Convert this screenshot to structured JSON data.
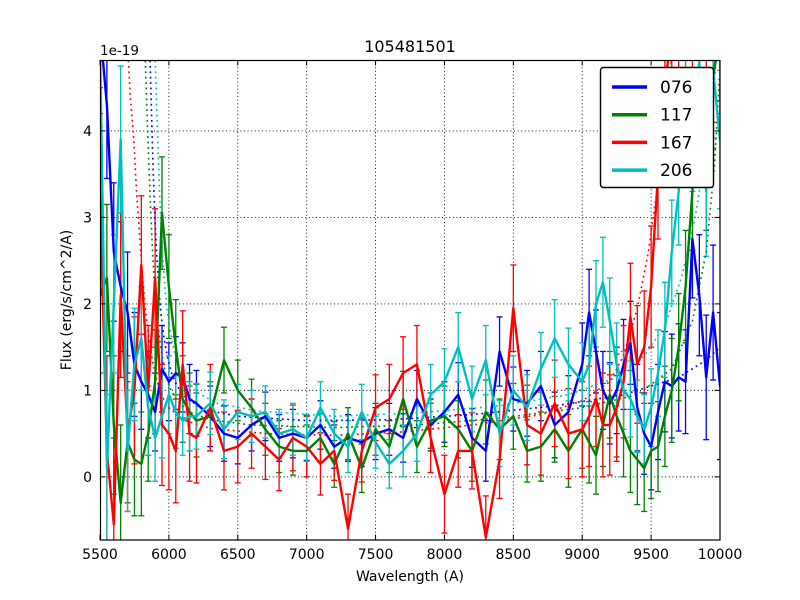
{
  "title": "105481501",
  "offset_label": "1e-19",
  "axes": {
    "xlabel": "Wavelength (A)",
    "ylabel": "Flux (erg/s/cm^2/A)"
  },
  "legend": {
    "position": "upper right",
    "entries": [
      {
        "label": "076",
        "color": "#0000ff"
      },
      {
        "label": "117",
        "color": "#008000"
      },
      {
        "label": "167",
        "color": "#ff0000"
      },
      {
        "label": "206",
        "color": "#00bfbf"
      }
    ]
  },
  "chart_data": {
    "type": "line",
    "title": "105481501",
    "xlabel": "Wavelength (A)",
    "ylabel": "Flux (erg/s/cm^2/A)",
    "y_offset_factor": "1e-19",
    "grid": true,
    "xlim": [
      5500,
      10000
    ],
    "ylim": [
      -0.73,
      4.82
    ],
    "x_ticks": [
      5500,
      6000,
      6500,
      7000,
      7500,
      8000,
      8500,
      9000,
      9500,
      10000
    ],
    "y_ticks": [
      0,
      1,
      2,
      3,
      4
    ],
    "x": [
      5500,
      5550,
      5600,
      5650,
      5700,
      5750,
      5800,
      5850,
      5900,
      5950,
      6000,
      6050,
      6100,
      6150,
      6200,
      6300,
      6400,
      6500,
      6600,
      6700,
      6800,
      6900,
      7000,
      7100,
      7200,
      7300,
      7400,
      7500,
      7600,
      7700,
      7800,
      7900,
      8000,
      8100,
      8200,
      8300,
      8400,
      8500,
      8600,
      8700,
      8800,
      8900,
      9000,
      9050,
      9100,
      9150,
      9200,
      9250,
      9300,
      9350,
      9400,
      9450,
      9500,
      9550,
      9600,
      9650,
      9700,
      9750,
      9800,
      9850,
      9900,
      9950,
      10000
    ],
    "series": [
      {
        "name": "076",
        "color": "#0000ff",
        "values": [
          5.2,
          4.3,
          2.6,
          2.2,
          1.9,
          1.3,
          1.1,
          0.95,
          0.75,
          1.25,
          1.1,
          1.2,
          1.15,
          0.9,
          0.85,
          0.7,
          0.5,
          0.45,
          0.6,
          0.7,
          0.45,
          0.5,
          0.45,
          0.6,
          0.35,
          0.45,
          0.4,
          0.5,
          0.55,
          0.45,
          0.9,
          0.6,
          0.75,
          0.95,
          0.45,
          0.3,
          1.45,
          0.9,
          0.85,
          1.05,
          0.6,
          0.75,
          1.3,
          1.9,
          1.45,
          1.0,
          0.85,
          1.0,
          1.3,
          1.55,
          0.8,
          0.5,
          0.35,
          0.75,
          1.1,
          1.05,
          1.15,
          1.1,
          2.75,
          2.1,
          1.15,
          1.9,
          1.05
        ],
        "errors": [
          1.0,
          0.85,
          0.8,
          0.75,
          0.7,
          0.6,
          0.55,
          0.5,
          0.45,
          0.5,
          0.45,
          0.42,
          0.4,
          0.4,
          0.38,
          0.35,
          0.32,
          0.3,
          0.3,
          0.28,
          0.27,
          0.28,
          0.26,
          0.28,
          0.25,
          0.27,
          0.28,
          0.3,
          0.3,
          0.28,
          0.33,
          0.3,
          0.35,
          0.37,
          0.34,
          0.35,
          0.4,
          0.37,
          0.38,
          0.4,
          0.38,
          0.42,
          0.48,
          0.5,
          0.48,
          0.45,
          0.47,
          0.5,
          0.52,
          0.48,
          0.5,
          0.47,
          0.5,
          0.55,
          0.58,
          0.6,
          0.62,
          0.6,
          0.68,
          0.7,
          0.72,
          0.78,
          0.85
        ]
      },
      {
        "name": "117",
        "color": "#008000",
        "values": [
          2.1,
          2.3,
          0.6,
          -0.3,
          0.4,
          0.2,
          0.15,
          0.5,
          1.1,
          3.05,
          2.2,
          1.5,
          0.9,
          0.75,
          0.65,
          0.7,
          1.35,
          1.0,
          0.8,
          0.55,
          0.35,
          0.3,
          0.3,
          0.45,
          0.15,
          0.5,
          0.1,
          0.55,
          0.35,
          0.9,
          0.35,
          0.65,
          0.7,
          0.55,
          0.3,
          0.75,
          0.55,
          0.7,
          0.3,
          0.35,
          0.55,
          0.3,
          0.55,
          0.4,
          0.25,
          0.6,
          0.95,
          0.7,
          0.5,
          0.3,
          0.2,
          0.1,
          0.3,
          0.35,
          0.7,
          1.0,
          1.5,
          2.2,
          3.3,
          4.3,
          3.6,
          4.6,
          5.2
        ],
        "errors": [
          0.9,
          0.85,
          0.8,
          0.9,
          0.7,
          0.65,
          0.6,
          0.55,
          0.6,
          0.65,
          0.6,
          0.55,
          0.5,
          0.45,
          0.42,
          0.4,
          0.38,
          0.35,
          0.33,
          0.3,
          0.3,
          0.28,
          0.3,
          0.28,
          0.27,
          0.3,
          0.28,
          0.3,
          0.3,
          0.32,
          0.3,
          0.32,
          0.35,
          0.33,
          0.35,
          0.37,
          0.35,
          0.38,
          0.36,
          0.4,
          0.38,
          0.42,
          0.45,
          0.47,
          0.45,
          0.48,
          0.5,
          0.47,
          0.5,
          0.48,
          0.52,
          0.5,
          0.55,
          0.52,
          0.58,
          0.6,
          0.62,
          0.65,
          0.68,
          0.72,
          0.75,
          0.8,
          0.85
        ]
      },
      {
        "name": "167",
        "color": "#ff0000",
        "values": [
          3.3,
          0.3,
          -0.55,
          2.1,
          0.5,
          1.0,
          2.45,
          1.0,
          2.3,
          0.6,
          0.5,
          0.3,
          1.3,
          0.5,
          0.45,
          0.8,
          0.3,
          0.35,
          0.5,
          0.35,
          0.2,
          0.45,
          0.35,
          0.15,
          0.3,
          -0.6,
          0.3,
          0.8,
          0.9,
          1.2,
          1.3,
          0.45,
          -0.2,
          0.3,
          0.3,
          -0.7,
          0.2,
          1.95,
          0.6,
          0.5,
          0.85,
          0.5,
          0.55,
          0.7,
          0.9,
          0.6,
          0.6,
          0.8,
          1.1,
          1.85,
          1.3,
          1.5,
          2.2,
          3.5,
          4.5,
          5.2,
          5.3,
          5.2,
          5.3,
          5.1,
          5.2,
          5.0,
          5.2
        ],
        "errors": [
          1.2,
          1.1,
          1.0,
          0.95,
          0.9,
          0.85,
          0.8,
          0.75,
          0.8,
          0.7,
          0.65,
          0.6,
          0.62,
          0.55,
          0.52,
          0.5,
          0.45,
          0.42,
          0.4,
          0.38,
          0.36,
          0.38,
          0.35,
          0.36,
          0.34,
          0.4,
          0.36,
          0.38,
          0.4,
          0.42,
          0.45,
          0.4,
          0.45,
          0.42,
          0.44,
          0.48,
          0.45,
          0.5,
          0.46,
          0.48,
          0.5,
          0.52,
          0.55,
          0.58,
          0.55,
          0.6,
          0.58,
          0.62,
          0.65,
          0.62,
          0.68,
          0.65,
          0.7,
          0.75,
          0.78,
          0.8,
          0.85,
          0.82,
          0.9,
          0.88,
          0.95,
          0.9,
          1.0
        ]
      },
      {
        "name": "206",
        "color": "#00bfbf",
        "values": [
          5.0,
          0.1,
          2.0,
          3.9,
          0.3,
          1.3,
          1.6,
          0.8,
          0.45,
          0.7,
          0.95,
          0.75,
          0.65,
          0.7,
          0.7,
          0.85,
          0.55,
          0.75,
          0.7,
          0.75,
          0.5,
          0.55,
          0.45,
          0.8,
          0.5,
          0.35,
          0.75,
          0.4,
          0.15,
          0.3,
          0.5,
          0.95,
          1.1,
          1.5,
          0.9,
          1.35,
          0.5,
          1.0,
          0.8,
          1.25,
          1.6,
          1.3,
          1.1,
          1.3,
          2.0,
          2.25,
          1.8,
          1.3,
          1.0,
          0.9,
          0.7,
          0.55,
          0.8,
          1.2,
          1.7,
          2.6,
          3.3,
          4.5,
          4.0,
          4.8,
          3.3,
          4.7,
          3.9
        ],
        "errors": [
          0.95,
          0.85,
          0.8,
          0.85,
          0.7,
          0.65,
          0.6,
          0.55,
          0.5,
          0.48,
          0.45,
          0.42,
          0.4,
          0.4,
          0.38,
          0.36,
          0.34,
          0.32,
          0.3,
          0.3,
          0.28,
          0.3,
          0.27,
          0.3,
          0.28,
          0.3,
          0.32,
          0.3,
          0.28,
          0.3,
          0.32,
          0.35,
          0.38,
          0.4,
          0.38,
          0.4,
          0.38,
          0.4,
          0.38,
          0.42,
          0.45,
          0.42,
          0.45,
          0.48,
          0.5,
          0.52,
          0.5,
          0.48,
          0.45,
          0.44,
          0.42,
          0.4,
          0.45,
          0.5,
          0.55,
          0.6,
          0.62,
          0.68,
          0.7,
          0.72,
          0.75,
          0.78,
          0.8
        ]
      }
    ],
    "dotted_series": [
      {
        "name": "076-model",
        "color": "#0000ff",
        "points": [
          [
            5860,
            5.0
          ],
          [
            5872,
            4.3
          ],
          [
            5885,
            3.6
          ],
          [
            5898,
            3.0
          ],
          [
            5912,
            2.55
          ],
          [
            5928,
            2.15
          ],
          [
            5945,
            1.85
          ],
          [
            5965,
            1.6
          ],
          [
            5990,
            1.38
          ],
          [
            6020,
            1.2
          ],
          [
            6060,
            1.05
          ],
          [
            6120,
            0.92
          ],
          [
            6250,
            0.78
          ],
          [
            6500,
            0.7
          ],
          [
            7000,
            0.65
          ],
          [
            7600,
            0.66
          ],
          [
            8200,
            0.72
          ],
          [
            8800,
            0.82
          ],
          [
            9300,
            0.95
          ],
          [
            9700,
            1.15
          ],
          [
            9900,
            1.35
          ],
          [
            10000,
            1.5
          ]
        ]
      },
      {
        "name": "117-model",
        "color": "#008000",
        "points": [
          [
            5825,
            5.0
          ],
          [
            5840,
            4.3
          ],
          [
            5855,
            3.6
          ],
          [
            5870,
            3.0
          ],
          [
            5885,
            2.5
          ],
          [
            5900,
            2.1
          ],
          [
            5920,
            1.75
          ],
          [
            5945,
            1.45
          ],
          [
            5975,
            1.2
          ],
          [
            6010,
            1.02
          ],
          [
            6060,
            0.88
          ],
          [
            6150,
            0.75
          ],
          [
            6300,
            0.66
          ],
          [
            6600,
            0.6
          ],
          [
            7200,
            0.57
          ],
          [
            7800,
            0.6
          ],
          [
            8400,
            0.68
          ],
          [
            9000,
            0.8
          ],
          [
            9400,
            0.95
          ],
          [
            9650,
            1.25
          ],
          [
            9800,
            1.8
          ],
          [
            9900,
            2.6
          ],
          [
            9960,
            3.6
          ],
          [
            9995,
            4.6
          ]
        ]
      },
      {
        "name": "167-model",
        "color": "#ff0000",
        "points": [
          [
            5700,
            5.0
          ],
          [
            5720,
            4.4
          ],
          [
            5745,
            3.9
          ],
          [
            5765,
            3.3
          ],
          [
            5785,
            2.85
          ],
          [
            5805,
            2.4
          ],
          [
            5825,
            2.0
          ],
          [
            5850,
            1.65
          ],
          [
            5880,
            1.35
          ],
          [
            5915,
            1.1
          ],
          [
            5955,
            0.92
          ],
          [
            6000,
            0.8
          ],
          [
            6100,
            0.66
          ],
          [
            6300,
            0.56
          ],
          [
            6700,
            0.5
          ],
          [
            7200,
            0.48
          ],
          [
            7700,
            0.52
          ],
          [
            8200,
            0.6
          ],
          [
            8700,
            0.72
          ],
          [
            9000,
            0.88
          ],
          [
            9200,
            1.1
          ],
          [
            9300,
            1.4
          ],
          [
            9400,
            1.95
          ],
          [
            9480,
            2.6
          ],
          [
            9550,
            3.4
          ],
          [
            9600,
            4.1
          ],
          [
            9645,
            4.8
          ],
          [
            9665,
            5.1
          ]
        ]
      },
      {
        "name": "206-model",
        "color": "#00bfbf",
        "points": [
          [
            5898,
            5.0
          ],
          [
            5910,
            4.35
          ],
          [
            5922,
            3.75
          ],
          [
            5935,
            3.2
          ],
          [
            5950,
            2.7
          ],
          [
            5965,
            2.3
          ],
          [
            5985,
            1.95
          ],
          [
            6010,
            1.68
          ],
          [
            6040,
            1.45
          ],
          [
            6080,
            1.25
          ],
          [
            6130,
            1.1
          ],
          [
            6200,
            0.98
          ],
          [
            6350,
            0.85
          ],
          [
            6650,
            0.76
          ],
          [
            7200,
            0.7
          ],
          [
            7800,
            0.74
          ],
          [
            8400,
            0.82
          ],
          [
            8900,
            0.95
          ],
          [
            9250,
            1.15
          ],
          [
            9450,
            1.4
          ],
          [
            9600,
            1.75
          ],
          [
            9720,
            2.3
          ],
          [
            9820,
            3.0
          ],
          [
            9900,
            3.8
          ],
          [
            9960,
            4.6
          ],
          [
            9990,
            5.1
          ]
        ]
      }
    ]
  }
}
